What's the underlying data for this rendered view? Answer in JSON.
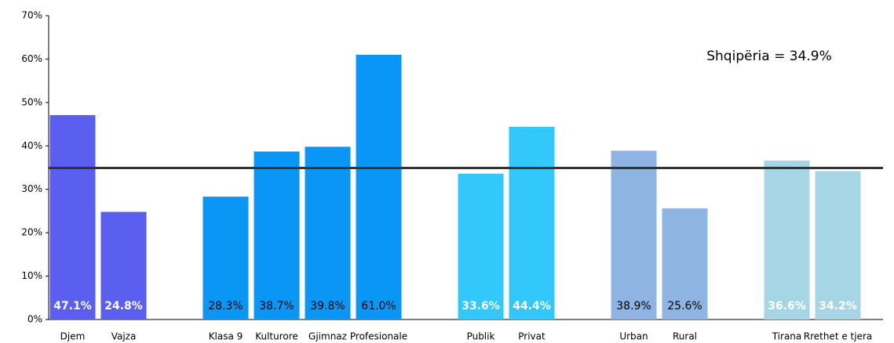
{
  "chart_data": {
    "type": "bar",
    "categories": [
      "Djem",
      "Vajza",
      null,
      "Klasa 9",
      "Kulturore",
      "Gjimnaz",
      "Profesionale",
      null,
      "Publik",
      "Privat",
      null,
      "Urban",
      "Rural",
      null,
      "Tirana",
      "Rrethet e tjera"
    ],
    "values": [
      47.1,
      24.8,
      null,
      28.3,
      38.7,
      39.8,
      61.0,
      null,
      33.6,
      44.4,
      null,
      38.9,
      25.6,
      null,
      36.6,
      34.2
    ],
    "value_labels": [
      "47.1%",
      "24.8%",
      null,
      "28.3%",
      "38.7%",
      "39.8%",
      "61.0%",
      null,
      "33.6%",
      "44.4%",
      null,
      "38.9%",
      "25.6%",
      null,
      "36.6%",
      "34.2%"
    ],
    "colors": [
      "#5b5ff0",
      "#5b5ff0",
      null,
      "#0a96f5",
      "#0a96f5",
      "#0a96f5",
      "#0a96f5",
      null,
      "#33c8fb",
      "#33c8fb",
      null,
      "#8eb4e3",
      "#8eb4e3",
      null,
      "#a6d6e6",
      "#a6d6e6"
    ],
    "label_colors": [
      "#ffffff",
      "#ffffff",
      null,
      "#000000",
      "#000000",
      "#000000",
      "#000000",
      null,
      "#ffffff",
      "#ffffff",
      null,
      "#000000",
      "#000000",
      null,
      "#ffffff",
      "#ffffff"
    ],
    "label_bold": [
      true,
      true,
      null,
      false,
      false,
      false,
      false,
      null,
      true,
      true,
      null,
      false,
      false,
      null,
      true,
      true
    ],
    "ylim": [
      0,
      70
    ],
    "yticks": [
      {
        "value": 0,
        "label": "0%"
      },
      {
        "value": 10,
        "label": "10%"
      },
      {
        "value": 20,
        "label": "20%"
      },
      {
        "value": 30,
        "label": "30%"
      },
      {
        "value": 40,
        "label": "40%"
      },
      {
        "value": 50,
        "label": "50%"
      },
      {
        "value": 60,
        "label": "60%"
      },
      {
        "value": 70,
        "label": "70%"
      }
    ],
    "reference": {
      "value": 34.9,
      "label": "Shqipëria = 34.9%",
      "color": "#333333"
    }
  }
}
